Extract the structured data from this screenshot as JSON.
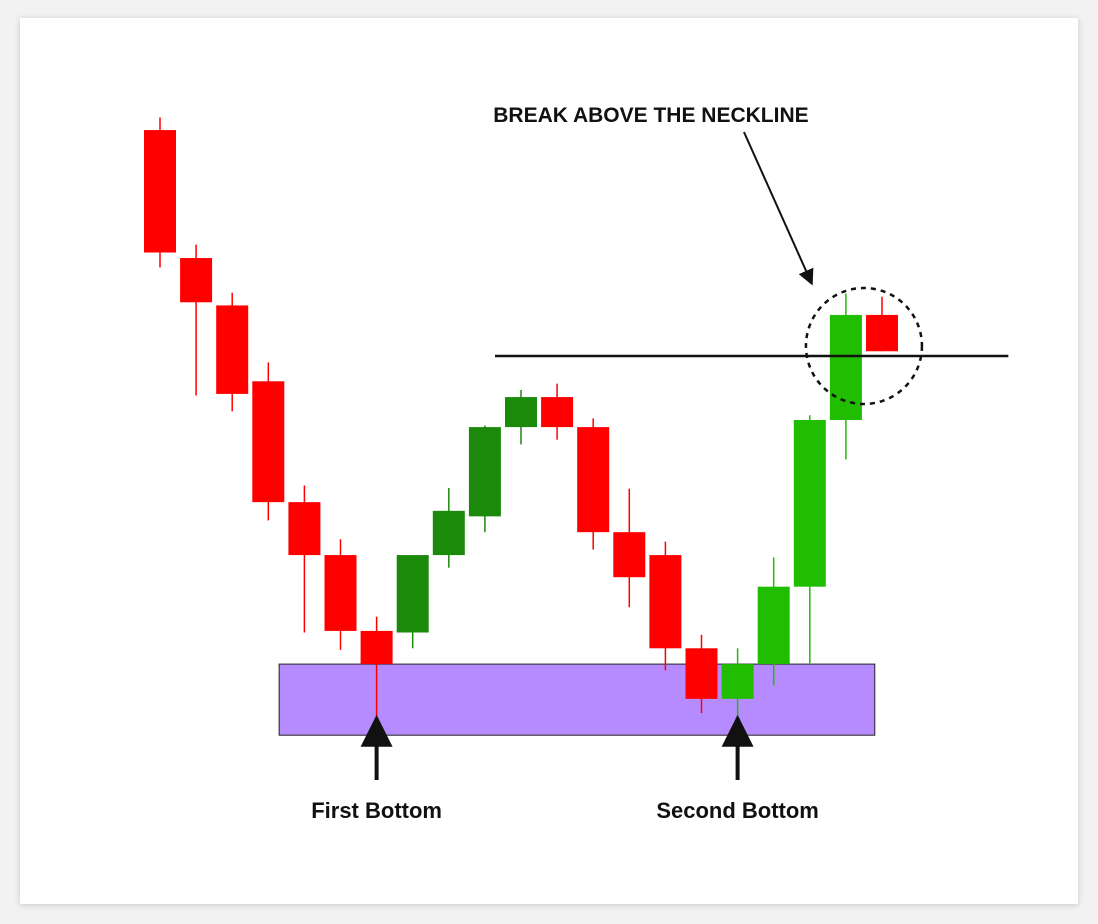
{
  "chart_data": {
    "type": "candlestick",
    "title": "",
    "xlabel": "",
    "ylabel": "",
    "ylim": [
      0,
      100
    ],
    "grid": false,
    "candles": [
      {
        "i": 1,
        "o": 88.6,
        "h": 90.2,
        "l": 71.2,
        "c": 73.1
      },
      {
        "i": 2,
        "o": 72.4,
        "h": 74.1,
        "l": 55.0,
        "c": 66.8
      },
      {
        "i": 3,
        "o": 66.4,
        "h": 68.0,
        "l": 53.0,
        "c": 55.2
      },
      {
        "i": 4,
        "o": 56.8,
        "h": 59.2,
        "l": 39.2,
        "c": 41.5
      },
      {
        "i": 5,
        "o": 41.5,
        "h": 43.6,
        "l": 25.0,
        "c": 34.8
      },
      {
        "i": 6,
        "o": 34.8,
        "h": 36.8,
        "l": 22.8,
        "c": 25.2
      },
      {
        "i": 7,
        "o": 25.2,
        "h": 27.0,
        "l": 12.3,
        "c": 21.0
      },
      {
        "i": 8,
        "o": 25.0,
        "h": 34.8,
        "l": 23.0,
        "c": 34.8
      },
      {
        "i": 9,
        "o": 34.8,
        "h": 43.3,
        "l": 33.2,
        "c": 40.4
      },
      {
        "i": 10,
        "o": 39.7,
        "h": 51.2,
        "l": 37.7,
        "c": 51.0
      },
      {
        "i": 11,
        "o": 51.0,
        "h": 55.7,
        "l": 48.8,
        "c": 54.8
      },
      {
        "i": 12,
        "o": 54.8,
        "h": 56.5,
        "l": 49.4,
        "c": 51.0
      },
      {
        "i": 13,
        "o": 51.0,
        "h": 52.1,
        "l": 35.5,
        "c": 37.7
      },
      {
        "i": 14,
        "o": 37.7,
        "h": 43.2,
        "l": 28.2,
        "c": 32.0
      },
      {
        "i": 15,
        "o": 34.8,
        "h": 36.5,
        "l": 20.2,
        "c": 23.0
      },
      {
        "i": 16,
        "o": 23.0,
        "h": 24.7,
        "l": 14.8,
        "c": 16.6
      },
      {
        "i": 17,
        "o": 16.6,
        "h": 23.0,
        "l": 11.2,
        "c": 21.0
      },
      {
        "i": 18,
        "o": 21.0,
        "h": 34.5,
        "l": 18.3,
        "c": 30.8
      },
      {
        "i": 19,
        "o": 30.8,
        "h": 52.5,
        "l": 21.1,
        "c": 51.9
      },
      {
        "i": 20,
        "o": 51.9,
        "h": 67.9,
        "l": 46.9,
        "c": 65.2
      },
      {
        "i": 21,
        "o": 65.2,
        "h": 67.5,
        "l": 60.6,
        "c": 60.6
      }
    ],
    "bearish_color": "#ff0000",
    "bullish_color_first": "#1b8a0b",
    "bullish_color_second": "#21bd00",
    "neckline": {
      "y": 60.0,
      "from_i": 11,
      "to_i": 24.5
    },
    "support_zone": {
      "y_low": 12.0,
      "y_high": 21.0,
      "from_i": 4.3,
      "to_i": 20.8,
      "color": "#b68bff"
    },
    "annotations": [
      {
        "text": "BREAK ABOVE THE NECKLINE",
        "target_i": 20.5
      },
      {
        "text": "First Bottom",
        "target_i": 7
      },
      {
        "text": "Second Bottom",
        "target_i": 17
      }
    ]
  }
}
